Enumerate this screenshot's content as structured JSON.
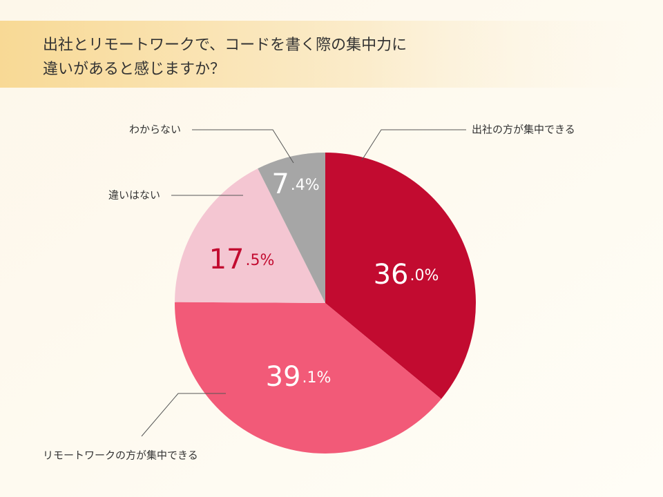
{
  "chart_data": {
    "type": "pie",
    "title": [
      "出社とリモートワークで、コードを書く際の集中力に",
      "違いがあると感じますか？"
    ],
    "categories": [
      "出社の方が集中できる",
      "リモートワークの方が集中できる",
      "違いはない",
      "わからない"
    ],
    "values": [
      36.0,
      39.1,
      17.5,
      7.4
    ],
    "value_labels": [
      "36.0%",
      "39.1%",
      "17.5%",
      "7.4%"
    ],
    "colors": [
      "#c20b30",
      "#f25a78",
      "#f4c6d2",
      "#a6a6a6"
    ]
  }
}
